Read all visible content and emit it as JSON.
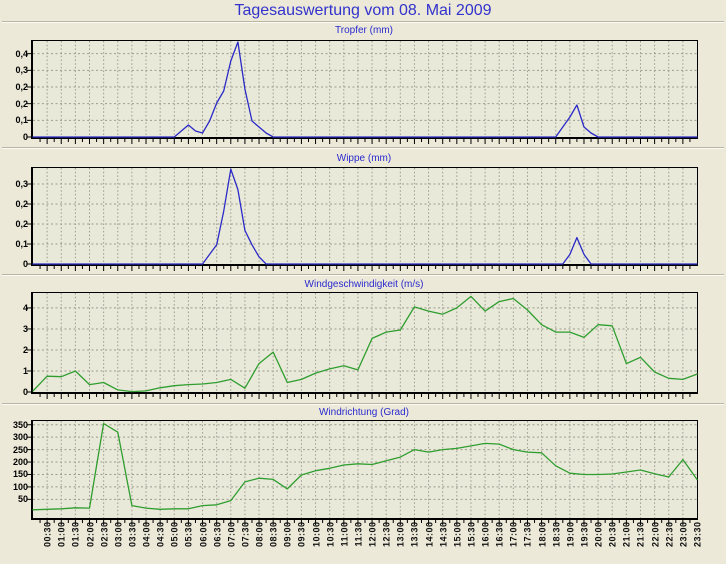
{
  "page": {
    "title": "Tagesauswertung vom 08. Mai 2009"
  },
  "colors": {
    "page_bg": "#ece9d8",
    "plot_bg": "#e9e9da",
    "title_blue": "#3232cc",
    "grid_gray": "#9c9c8e",
    "rain_line": "#2a2ac8",
    "wind_line": "#2f9e2f"
  },
  "x_axis": {
    "unit": "minutes since 00:00",
    "range_minutes": [
      0,
      1410
    ],
    "label_interval_minutes": 30,
    "minor_tick_minutes": 15,
    "labels": [
      "00:30",
      "01:00",
      "01:30",
      "02:00",
      "02:30",
      "03:00",
      "03:30",
      "04:00",
      "04:30",
      "05:00",
      "05:30",
      "06:00",
      "06:30",
      "07:00",
      "07:30",
      "08:00",
      "08:30",
      "09:00",
      "09:30",
      "10:00",
      "10:30",
      "11:00",
      "11:30",
      "12:00",
      "12:30",
      "13:00",
      "13:30",
      "14:00",
      "14:30",
      "15:00",
      "15:30",
      "16:00",
      "16:30",
      "17:00",
      "17:30",
      "18:00",
      "18:30",
      "19:00",
      "19:30",
      "20:00",
      "20:30",
      "21:00",
      "21:30",
      "22:00",
      "22:30",
      "23:00",
      "23:30"
    ]
  },
  "chart_data": [
    {
      "type": "line",
      "title": "Tropfer (mm)",
      "color": "#2a2ac8",
      "ylim": [
        0,
        0.48
      ],
      "yticks": [
        {
          "value": 0,
          "label": "0"
        },
        {
          "value": 0.0833,
          "label": "0,1"
        },
        {
          "value": 0.1667,
          "label": "0,2"
        },
        {
          "value": 0.25,
          "label": "0,2"
        },
        {
          "value": 0.3333,
          "label": "0,3"
        },
        {
          "value": 0.4167,
          "label": "0,4"
        }
      ],
      "points": [
        [
          0,
          0
        ],
        [
          300,
          0
        ],
        [
          315,
          0.03
        ],
        [
          330,
          0.06
        ],
        [
          345,
          0.03
        ],
        [
          360,
          0.02
        ],
        [
          375,
          0.08
        ],
        [
          390,
          0.17
        ],
        [
          405,
          0.23
        ],
        [
          420,
          0.38
        ],
        [
          435,
          0.475
        ],
        [
          450,
          0.24
        ],
        [
          465,
          0.08
        ],
        [
          480,
          0.05
        ],
        [
          495,
          0.02
        ],
        [
          510,
          0
        ],
        [
          1110,
          0
        ],
        [
          1125,
          0.05
        ],
        [
          1140,
          0.1
        ],
        [
          1155,
          0.16
        ],
        [
          1170,
          0.05
        ],
        [
          1185,
          0.02
        ],
        [
          1200,
          0
        ],
        [
          1410,
          0
        ]
      ]
    },
    {
      "type": "line",
      "title": "Wippe (mm)",
      "color": "#2a2ac8",
      "ylim": [
        0,
        0.4
      ],
      "yticks": [
        {
          "value": 0,
          "label": "0"
        },
        {
          "value": 0.0833,
          "label": "0,1"
        },
        {
          "value": 0.1667,
          "label": "0,2"
        },
        {
          "value": 0.25,
          "label": "0,2"
        },
        {
          "value": 0.3333,
          "label": "0,3"
        }
      ],
      "points": [
        [
          0,
          0
        ],
        [
          360,
          0
        ],
        [
          375,
          0.04
        ],
        [
          390,
          0.08
        ],
        [
          405,
          0.22
        ],
        [
          420,
          0.395
        ],
        [
          435,
          0.31
        ],
        [
          450,
          0.14
        ],
        [
          465,
          0.08
        ],
        [
          480,
          0.03
        ],
        [
          495,
          0
        ],
        [
          1125,
          0
        ],
        [
          1140,
          0.04
        ],
        [
          1155,
          0.11
        ],
        [
          1170,
          0.04
        ],
        [
          1185,
          0
        ],
        [
          1410,
          0
        ]
      ]
    },
    {
      "type": "line",
      "title": "Windgeschwindigkeit (m/s)",
      "color": "#2f9e2f",
      "ylim": [
        0,
        4.71
      ],
      "yticks": [
        {
          "value": 0,
          "label": "0"
        },
        {
          "value": 1,
          "label": "1"
        },
        {
          "value": 2,
          "label": "2"
        },
        {
          "value": 3,
          "label": "3"
        },
        {
          "value": 4,
          "label": "4"
        }
      ],
      "points": [
        [
          0,
          0.05
        ],
        [
          30,
          0.75
        ],
        [
          60,
          0.73
        ],
        [
          90,
          1.0
        ],
        [
          120,
          0.35
        ],
        [
          150,
          0.45
        ],
        [
          180,
          0.1
        ],
        [
          210,
          0.02
        ],
        [
          240,
          0.05
        ],
        [
          270,
          0.2
        ],
        [
          300,
          0.3
        ],
        [
          330,
          0.35
        ],
        [
          360,
          0.38
        ],
        [
          390,
          0.45
        ],
        [
          420,
          0.6
        ],
        [
          450,
          0.18
        ],
        [
          480,
          1.35
        ],
        [
          510,
          1.9
        ],
        [
          540,
          0.45
        ],
        [
          570,
          0.6
        ],
        [
          600,
          0.9
        ],
        [
          630,
          1.1
        ],
        [
          660,
          1.25
        ],
        [
          690,
          1.05
        ],
        [
          720,
          2.55
        ],
        [
          750,
          2.85
        ],
        [
          780,
          2.95
        ],
        [
          810,
          4.05
        ],
        [
          840,
          3.85
        ],
        [
          870,
          3.7
        ],
        [
          900,
          4.0
        ],
        [
          930,
          4.55
        ],
        [
          960,
          3.85
        ],
        [
          990,
          4.3
        ],
        [
          1020,
          4.45
        ],
        [
          1050,
          3.9
        ],
        [
          1080,
          3.2
        ],
        [
          1110,
          2.85
        ],
        [
          1140,
          2.85
        ],
        [
          1170,
          2.6
        ],
        [
          1200,
          3.2
        ],
        [
          1230,
          3.15
        ],
        [
          1260,
          1.35
        ],
        [
          1290,
          1.65
        ],
        [
          1320,
          0.95
        ],
        [
          1350,
          0.65
        ],
        [
          1380,
          0.6
        ],
        [
          1410,
          0.85
        ]
      ]
    },
    {
      "type": "line",
      "title": "Windrichtung (Grad)",
      "color": "#2f9e2f",
      "ylim": [
        -25,
        365
      ],
      "yticks": [
        {
          "value": 50,
          "label": "50"
        },
        {
          "value": 100,
          "label": "100"
        },
        {
          "value": 150,
          "label": "150"
        },
        {
          "value": 200,
          "label": "200"
        },
        {
          "value": 250,
          "label": "250"
        },
        {
          "value": 300,
          "label": "300"
        },
        {
          "value": 350,
          "label": "350"
        }
      ],
      "points": [
        [
          0,
          8
        ],
        [
          30,
          10
        ],
        [
          60,
          12
        ],
        [
          90,
          16
        ],
        [
          120,
          15
        ],
        [
          150,
          355
        ],
        [
          180,
          320
        ],
        [
          210,
          25
        ],
        [
          240,
          15
        ],
        [
          270,
          10
        ],
        [
          300,
          12
        ],
        [
          330,
          12
        ],
        [
          360,
          25
        ],
        [
          390,
          28
        ],
        [
          420,
          45
        ],
        [
          450,
          120
        ],
        [
          480,
          135
        ],
        [
          510,
          130
        ],
        [
          540,
          92
        ],
        [
          570,
          148
        ],
        [
          600,
          165
        ],
        [
          630,
          175
        ],
        [
          660,
          188
        ],
        [
          690,
          193
        ],
        [
          720,
          190
        ],
        [
          750,
          205
        ],
        [
          780,
          220
        ],
        [
          810,
          250
        ],
        [
          840,
          240
        ],
        [
          870,
          250
        ],
        [
          900,
          255
        ],
        [
          930,
          265
        ],
        [
          960,
          275
        ],
        [
          990,
          272
        ],
        [
          1020,
          250
        ],
        [
          1050,
          240
        ],
        [
          1080,
          237
        ],
        [
          1110,
          185
        ],
        [
          1140,
          155
        ],
        [
          1170,
          150
        ],
        [
          1200,
          150
        ],
        [
          1230,
          152
        ],
        [
          1260,
          160
        ],
        [
          1290,
          168
        ],
        [
          1320,
          153
        ],
        [
          1350,
          140
        ],
        [
          1380,
          210
        ],
        [
          1410,
          130
        ]
      ]
    }
  ]
}
